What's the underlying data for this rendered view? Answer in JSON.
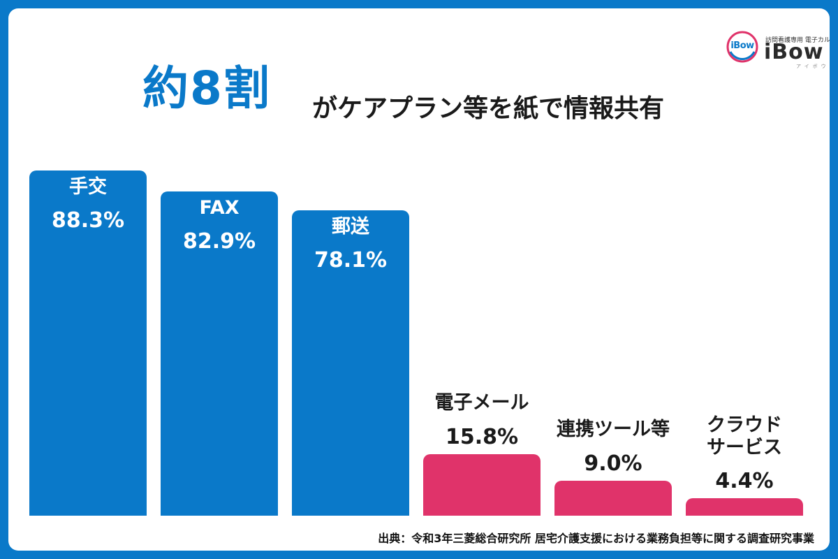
{
  "logo": {
    "badge_text": "iBow",
    "tagline": "訪問看護専用 電子カルテ",
    "wordmark": "iBow",
    "kana": "アイボウ"
  },
  "title": {
    "highlight": "約8割",
    "rest": "がケアプラン等を紙で情報共有"
  },
  "source": "出典：令和3年三菱総合研究所 居宅介護支援における業務負担等に関する調査研究事業",
  "colors": {
    "background": "#0a79c9",
    "paper_bar": "#0a79c9",
    "digital_bar": "#e0336a",
    "text_dark": "#1a1a1a"
  },
  "chart_data": {
    "type": "bar",
    "categories": [
      "手交",
      "FAX",
      "郵送",
      "電子メール",
      "連携ツール等",
      "クラウド\nサービス"
    ],
    "values": [
      88.3,
      82.9,
      78.1,
      15.8,
      9.0,
      4.4
    ],
    "value_labels": [
      "88.3%",
      "82.9%",
      "78.1%",
      "15.8%",
      "9.0%",
      "4.4%"
    ],
    "unit": "%",
    "bar_colors": [
      "#0a79c9",
      "#0a79c9",
      "#0a79c9",
      "#e0336a",
      "#e0336a",
      "#e0336a"
    ],
    "ylim": [
      0,
      100
    ],
    "grid": false,
    "legend": "none"
  }
}
